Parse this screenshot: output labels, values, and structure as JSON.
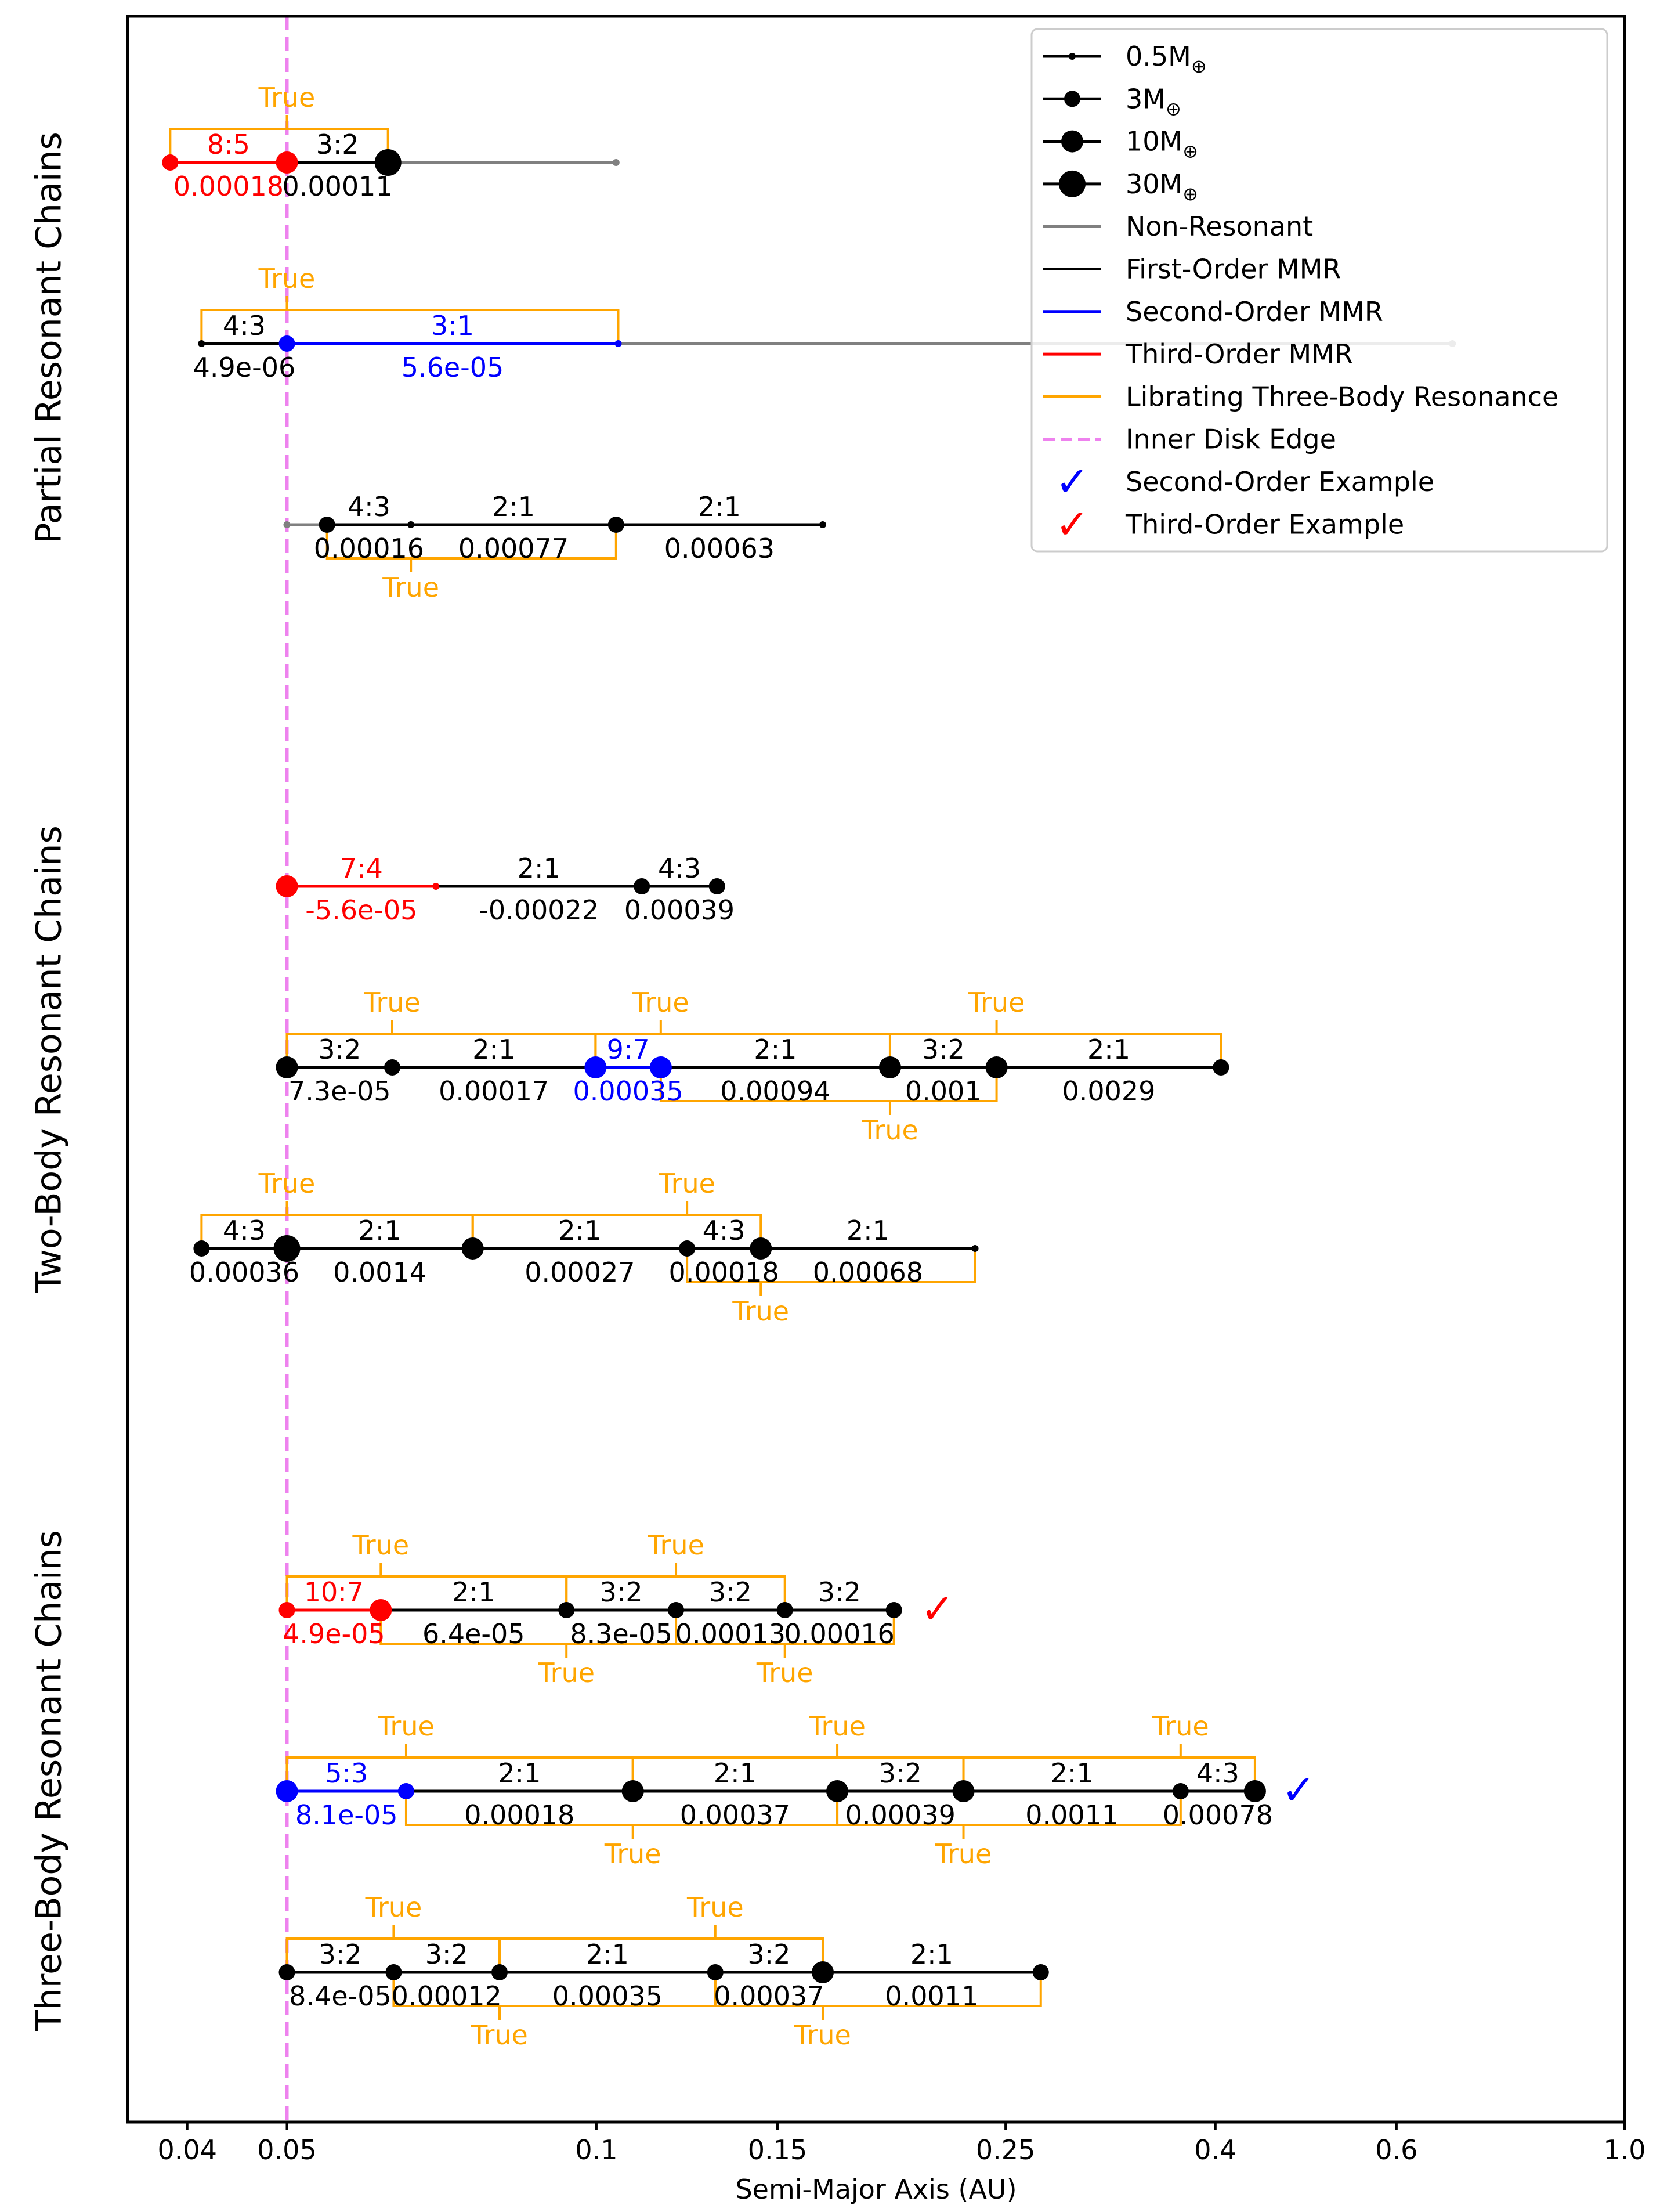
{
  "chart_data": {
    "type": "scatter",
    "xlabel": "Semi-Major Axis (AU)",
    "xscale": "log",
    "xlim": [
      0.035,
      1.0
    ],
    "xticks": [
      {
        "value": 0.04,
        "label": "0.04"
      },
      {
        "value": 0.05,
        "label": "0.05"
      },
      {
        "value": 0.1,
        "label": "0.1"
      },
      {
        "value": 0.15,
        "label": "0.15"
      },
      {
        "value": 0.25,
        "label": "0.25"
      },
      {
        "value": 0.4,
        "label": "0.4"
      },
      {
        "value": 0.6,
        "label": "0.6"
      },
      {
        "value": 1.0,
        "label": "1.0"
      }
    ],
    "inner_disk_edge": 0.05,
    "group_labels": [
      {
        "name": "partial",
        "label": "Partial Resonant Chains"
      },
      {
        "name": "two-body",
        "label": "Two-Body Resonant Chains"
      },
      {
        "name": "three-body",
        "label": "Three-Body Resonant Chains"
      }
    ],
    "colors": {
      "non_resonant": "#808080",
      "first_order": "#000000",
      "second_order": "#0000ff",
      "third_order": "#ff0000",
      "three_body": "#ffa500",
      "inner_disk_edge": "#ee82ee"
    },
    "legend": [
      {
        "kind": "mass",
        "text": "0.5M",
        "sub": "⊕",
        "mass": 0.5
      },
      {
        "kind": "mass",
        "text": "3M",
        "sub": "⊕",
        "mass": 3
      },
      {
        "kind": "mass",
        "text": "10M",
        "sub": "⊕",
        "mass": 10
      },
      {
        "kind": "mass",
        "text": "30M",
        "sub": "⊕",
        "mass": 30
      },
      {
        "kind": "line",
        "text": "Non-Resonant",
        "color": "#808080"
      },
      {
        "kind": "line",
        "text": "First-Order MMR",
        "color": "#000000"
      },
      {
        "kind": "line",
        "text": "Second-Order MMR",
        "color": "#0000ff"
      },
      {
        "kind": "line",
        "text": "Third-Order MMR",
        "color": "#ff0000"
      },
      {
        "kind": "line",
        "text": "Librating Three-Body Resonance",
        "color": "#ffa500"
      },
      {
        "kind": "dash",
        "text": "Inner Disk Edge",
        "color": "#ee82ee"
      },
      {
        "kind": "check",
        "text": "Second-Order Example",
        "color": "#0000ff"
      },
      {
        "kind": "check",
        "text": "Third-Order Example",
        "color": "#ff0000"
      }
    ],
    "systems": [
      {
        "row": 1,
        "planets": [
          {
            "a": 0.0385,
            "m": 3,
            "c": "#ff0000"
          },
          {
            "a": 0.05,
            "m": 10,
            "c": "#ff0000"
          },
          {
            "a": 0.0627,
            "m": 30,
            "c": "#000000"
          },
          {
            "a": 0.1045,
            "m": 0.5,
            "c": "#808080"
          }
        ],
        "pairs": [
          {
            "ratio": "8:5",
            "delta": "0.00018",
            "color": "#ff0000"
          },
          {
            "ratio": "3:2",
            "delta": "0.00011",
            "color": "#000000"
          },
          {
            "ratio": "",
            "delta": "",
            "color": "#808080"
          }
        ],
        "three_body": [
          {
            "start": 0,
            "side": "above",
            "label": "True"
          }
        ]
      },
      {
        "row": 2,
        "planets": [
          {
            "a": 0.0413,
            "m": 0.5,
            "c": "#000000"
          },
          {
            "a": 0.05,
            "m": 3,
            "c": "#0000ff"
          },
          {
            "a": 0.105,
            "m": 0.5,
            "c": "#0000ff"
          },
          {
            "a": 0.68,
            "m": 0.5,
            "c": "#808080"
          }
        ],
        "pairs": [
          {
            "ratio": "4:3",
            "delta": "4.9e-06",
            "color": "#000000"
          },
          {
            "ratio": "3:1",
            "delta": "5.6e-05",
            "color": "#0000ff"
          },
          {
            "ratio": "",
            "delta": "",
            "color": "#808080"
          }
        ],
        "three_body": [
          {
            "start": 0,
            "side": "above",
            "label": "True"
          }
        ]
      },
      {
        "row": 3,
        "planets": [
          {
            "a": 0.05,
            "m": 0.5,
            "c": "#808080"
          },
          {
            "a": 0.0547,
            "m": 3,
            "c": "#000000"
          },
          {
            "a": 0.066,
            "m": 0.5,
            "c": "#000000"
          },
          {
            "a": 0.1045,
            "m": 3,
            "c": "#000000"
          },
          {
            "a": 0.166,
            "m": 0.5,
            "c": "#000000"
          }
        ],
        "pairs": [
          {
            "ratio": "",
            "delta": "",
            "color": "#808080"
          },
          {
            "ratio": "4:3",
            "delta": "0.00016",
            "color": "#000000"
          },
          {
            "ratio": "2:1",
            "delta": "0.00077",
            "color": "#000000"
          },
          {
            "ratio": "2:1",
            "delta": "0.00063",
            "color": "#000000"
          }
        ],
        "three_body": [
          {
            "start": 1,
            "side": "below",
            "label": "True"
          }
        ]
      },
      {
        "row": 4,
        "planets": [
          {
            "a": 0.05,
            "m": 10,
            "c": "#ff0000"
          },
          {
            "a": 0.0698,
            "m": 0.5,
            "c": "#ff0000"
          },
          {
            "a": 0.1107,
            "m": 3,
            "c": "#000000"
          },
          {
            "a": 0.131,
            "m": 3,
            "c": "#000000"
          }
        ],
        "pairs": [
          {
            "ratio": "7:4",
            "delta": "-5.6e-05",
            "color": "#ff0000"
          },
          {
            "ratio": "2:1",
            "delta": "-0.00022",
            "color": "#000000"
          },
          {
            "ratio": "4:3",
            "delta": "0.00039",
            "color": "#000000"
          }
        ],
        "three_body": []
      },
      {
        "row": 5,
        "planets": [
          {
            "a": 0.05,
            "m": 10,
            "c": "#000000"
          },
          {
            "a": 0.0633,
            "m": 3,
            "c": "#000000"
          },
          {
            "a": 0.0998,
            "m": 10,
            "c": "#0000ff"
          },
          {
            "a": 0.1155,
            "m": 10,
            "c": "#0000ff"
          },
          {
            "a": 0.193,
            "m": 10,
            "c": "#000000"
          },
          {
            "a": 0.245,
            "m": 10,
            "c": "#000000"
          },
          {
            "a": 0.405,
            "m": 3,
            "c": "#000000"
          }
        ],
        "pairs": [
          {
            "ratio": "3:2",
            "delta": "7.3e-05",
            "color": "#000000"
          },
          {
            "ratio": "2:1",
            "delta": "0.00017",
            "color": "#000000"
          },
          {
            "ratio": "9:7",
            "delta": "0.00035",
            "color": "#0000ff"
          },
          {
            "ratio": "2:1",
            "delta": "0.00094",
            "color": "#000000"
          },
          {
            "ratio": "3:2",
            "delta": "0.001",
            "color": "#000000"
          },
          {
            "ratio": "2:1",
            "delta": "0.0029",
            "color": "#000000"
          }
        ],
        "three_body": [
          {
            "start": 0,
            "side": "above",
            "label": "True"
          },
          {
            "start": 2,
            "side": "above",
            "label": "True"
          },
          {
            "start": 4,
            "side": "above",
            "label": "True"
          },
          {
            "start": 3,
            "side": "below",
            "label": "True"
          }
        ]
      },
      {
        "row": 6,
        "planets": [
          {
            "a": 0.0413,
            "m": 3,
            "c": "#000000"
          },
          {
            "a": 0.05,
            "m": 30,
            "c": "#000000"
          },
          {
            "a": 0.0758,
            "m": 10,
            "c": "#000000"
          },
          {
            "a": 0.1225,
            "m": 3,
            "c": "#000000"
          },
          {
            "a": 0.1445,
            "m": 10,
            "c": "#000000"
          },
          {
            "a": 0.2335,
            "m": 0.5,
            "c": "#000000"
          }
        ],
        "pairs": [
          {
            "ratio": "4:3",
            "delta": "0.00036",
            "color": "#000000"
          },
          {
            "ratio": "2:1",
            "delta": "0.0014",
            "color": "#000000"
          },
          {
            "ratio": "2:1",
            "delta": "0.00027",
            "color": "#000000"
          },
          {
            "ratio": "4:3",
            "delta": "0.00018",
            "color": "#000000"
          },
          {
            "ratio": "2:1",
            "delta": "0.00068",
            "color": "#000000"
          }
        ],
        "three_body": [
          {
            "start": 0,
            "side": "above",
            "label": "True"
          },
          {
            "start": 2,
            "side": "above",
            "label": "True"
          },
          {
            "start": 3,
            "side": "below",
            "label": "True"
          }
        ]
      },
      {
        "row": 7,
        "planets": [
          {
            "a": 0.05,
            "m": 3,
            "c": "#ff0000"
          },
          {
            "a": 0.0617,
            "m": 10,
            "c": "#ff0000"
          },
          {
            "a": 0.0935,
            "m": 3,
            "c": "#000000"
          },
          {
            "a": 0.1195,
            "m": 3,
            "c": "#000000"
          },
          {
            "a": 0.1525,
            "m": 3,
            "c": "#000000"
          },
          {
            "a": 0.1947,
            "m": 3,
            "c": "#000000"
          }
        ],
        "pairs": [
          {
            "ratio": "10:7",
            "delta": "4.9e-05",
            "color": "#ff0000"
          },
          {
            "ratio": "2:1",
            "delta": "6.4e-05",
            "color": "#000000"
          },
          {
            "ratio": "3:2",
            "delta": "8.3e-05",
            "color": "#000000"
          },
          {
            "ratio": "3:2",
            "delta": "0.00013",
            "color": "#000000"
          },
          {
            "ratio": "3:2",
            "delta": "0.00016",
            "color": "#000000"
          }
        ],
        "three_body": [
          {
            "start": 0,
            "side": "above",
            "label": "True"
          },
          {
            "start": 2,
            "side": "above",
            "label": "True"
          },
          {
            "start": 1,
            "side": "below",
            "label": "True"
          },
          {
            "start": 3,
            "side": "below",
            "label": "True"
          }
        ],
        "example": {
          "text": "✓",
          "color": "#ff0000"
        }
      },
      {
        "row": 8,
        "planets": [
          {
            "a": 0.05,
            "m": 10,
            "c": "#0000ff"
          },
          {
            "a": 0.0653,
            "m": 3,
            "c": "#0000ff"
          },
          {
            "a": 0.1085,
            "m": 10,
            "c": "#000000"
          },
          {
            "a": 0.1715,
            "m": 10,
            "c": "#000000"
          },
          {
            "a": 0.2275,
            "m": 10,
            "c": "#000000"
          },
          {
            "a": 0.37,
            "m": 3,
            "c": "#000000"
          },
          {
            "a": 0.437,
            "m": 10,
            "c": "#000000"
          }
        ],
        "pairs": [
          {
            "ratio": "5:3",
            "delta": "8.1e-05",
            "color": "#0000ff"
          },
          {
            "ratio": "2:1",
            "delta": "0.00018",
            "color": "#000000"
          },
          {
            "ratio": "2:1",
            "delta": "0.00037",
            "color": "#000000"
          },
          {
            "ratio": "3:2",
            "delta": "0.00039",
            "color": "#000000"
          },
          {
            "ratio": "2:1",
            "delta": "0.0011",
            "color": "#000000"
          },
          {
            "ratio": "4:3",
            "delta": "0.00078",
            "color": "#000000"
          }
        ],
        "three_body": [
          {
            "start": 0,
            "side": "above",
            "label": "True"
          },
          {
            "start": 2,
            "side": "above",
            "label": "True"
          },
          {
            "start": 4,
            "side": "above",
            "label": "True"
          },
          {
            "start": 1,
            "side": "below",
            "label": "True"
          },
          {
            "start": 3,
            "side": "below",
            "label": "True"
          }
        ],
        "example": {
          "text": "✓",
          "color": "#0000ff"
        }
      },
      {
        "row": 9,
        "planets": [
          {
            "a": 0.05,
            "m": 3,
            "c": "#000000"
          },
          {
            "a": 0.0635,
            "m": 3,
            "c": "#000000"
          },
          {
            "a": 0.0805,
            "m": 3,
            "c": "#000000"
          },
          {
            "a": 0.1305,
            "m": 3,
            "c": "#000000"
          },
          {
            "a": 0.166,
            "m": 10,
            "c": "#000000"
          },
          {
            "a": 0.2705,
            "m": 3,
            "c": "#000000"
          }
        ],
        "pairs": [
          {
            "ratio": "3:2",
            "delta": "8.4e-05",
            "color": "#000000"
          },
          {
            "ratio": "3:2",
            "delta": "0.00012",
            "color": "#000000"
          },
          {
            "ratio": "2:1",
            "delta": "0.00035",
            "color": "#000000"
          },
          {
            "ratio": "3:2",
            "delta": "0.00037",
            "color": "#000000"
          },
          {
            "ratio": "2:1",
            "delta": "0.0011",
            "color": "#000000"
          }
        ],
        "three_body": [
          {
            "start": 0,
            "side": "above",
            "label": "True"
          },
          {
            "start": 2,
            "side": "above",
            "label": "True"
          },
          {
            "start": 1,
            "side": "below",
            "label": "True"
          },
          {
            "start": 3,
            "side": "below",
            "label": "True"
          }
        ]
      }
    ]
  }
}
